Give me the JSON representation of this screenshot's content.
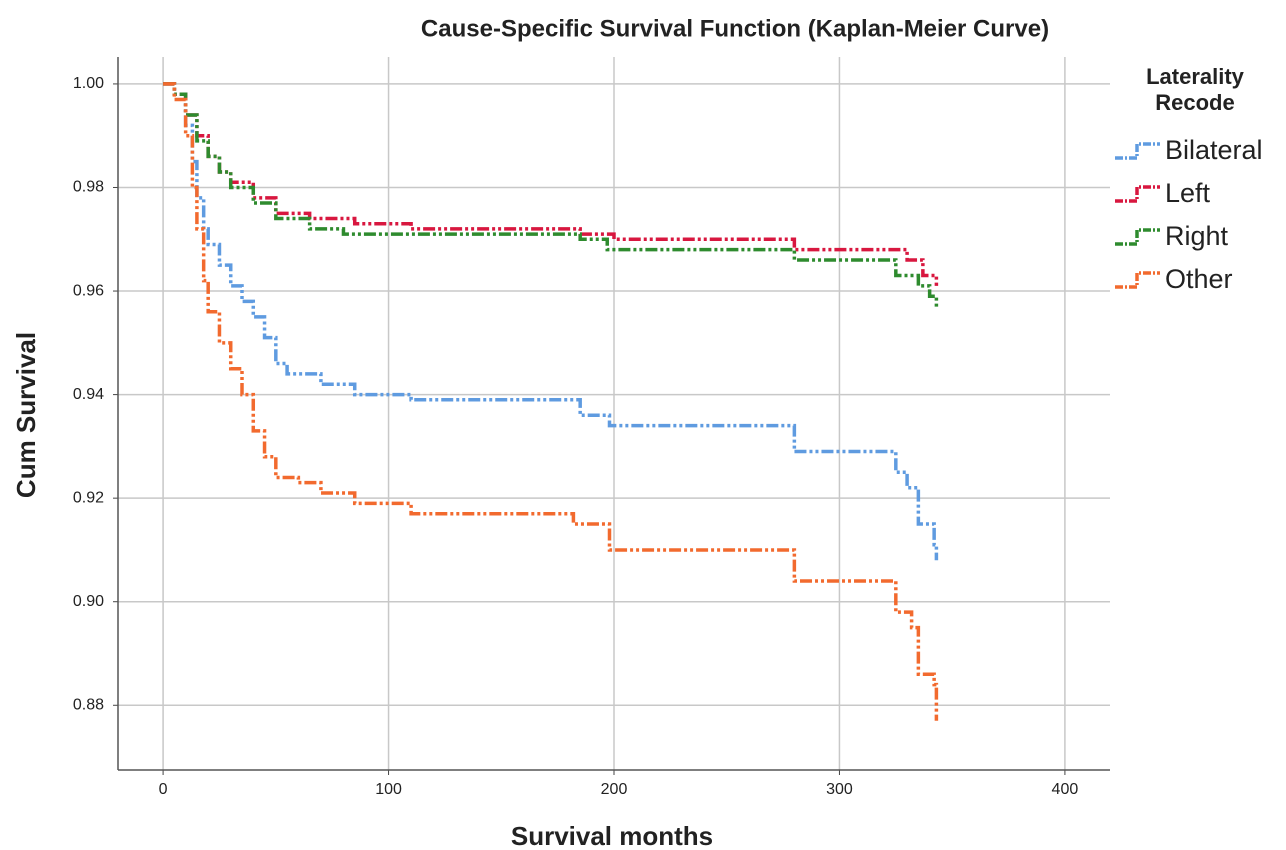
{
  "chart_data": {
    "type": "step",
    "title": "Cause-Specific Survival Function (Kaplan-Meier Curve)",
    "x_label": "Survival months",
    "y_label": "Cum Survival",
    "legend_title": [
      "Laterality",
      "Recode"
    ],
    "legend_position": "right",
    "grid": true,
    "xlim": [
      -20,
      420
    ],
    "xticks": [
      0,
      100,
      200,
      300,
      400
    ],
    "ylim": [
      0.8675,
      1.0052
    ],
    "yticks": [
      {
        "value": 1.0,
        "label": "1.00"
      },
      0.98,
      0.96,
      0.94,
      0.92,
      {
        "value": 0.9,
        "label": "0.90"
      },
      0.88
    ],
    "series": [
      {
        "name": "Bilateral",
        "color": "#5f9be0",
        "x": [
          0,
          5,
          10,
          13,
          15,
          18,
          20,
          25,
          30,
          35,
          40,
          45,
          50,
          55,
          70,
          85,
          110,
          185,
          198,
          280,
          325,
          330,
          335,
          342,
          343
        ],
        "values": [
          1.0,
          0.998,
          0.992,
          0.985,
          0.978,
          0.972,
          0.969,
          0.965,
          0.961,
          0.958,
          0.955,
          0.951,
          0.946,
          0.944,
          0.942,
          0.94,
          0.939,
          0.936,
          0.934,
          0.929,
          0.925,
          0.922,
          0.915,
          0.911,
          0.908
        ]
      },
      {
        "name": "Left",
        "color": "#d8173f",
        "x": [
          0,
          5,
          10,
          15,
          20,
          25,
          30,
          40,
          50,
          65,
          85,
          110,
          185,
          200,
          280,
          330,
          337,
          343
        ],
        "values": [
          1.0,
          0.998,
          0.994,
          0.99,
          0.986,
          0.983,
          0.981,
          0.978,
          0.975,
          0.974,
          0.973,
          0.972,
          0.971,
          0.97,
          0.968,
          0.966,
          0.963,
          0.961
        ]
      },
      {
        "name": "Right",
        "color": "#2e8b2e",
        "x": [
          0,
          5,
          10,
          15,
          20,
          25,
          30,
          40,
          50,
          65,
          80,
          185,
          197,
          280,
          325,
          335,
          340,
          343
        ],
        "values": [
          1.0,
          0.998,
          0.994,
          0.989,
          0.986,
          0.983,
          0.98,
          0.977,
          0.974,
          0.972,
          0.971,
          0.97,
          0.968,
          0.966,
          0.963,
          0.961,
          0.959,
          0.957
        ]
      },
      {
        "name": "Other",
        "color": "#f26a2e",
        "x": [
          0,
          5,
          10,
          13,
          15,
          18,
          20,
          25,
          30,
          35,
          40,
          45,
          50,
          60,
          70,
          85,
          110,
          182,
          198,
          280,
          325,
          332,
          335,
          342,
          343
        ],
        "values": [
          1.0,
          0.997,
          0.99,
          0.98,
          0.972,
          0.962,
          0.956,
          0.95,
          0.945,
          0.94,
          0.933,
          0.928,
          0.924,
          0.923,
          0.921,
          0.919,
          0.917,
          0.915,
          0.91,
          0.904,
          0.898,
          0.895,
          0.886,
          0.884,
          0.877
        ]
      }
    ]
  }
}
